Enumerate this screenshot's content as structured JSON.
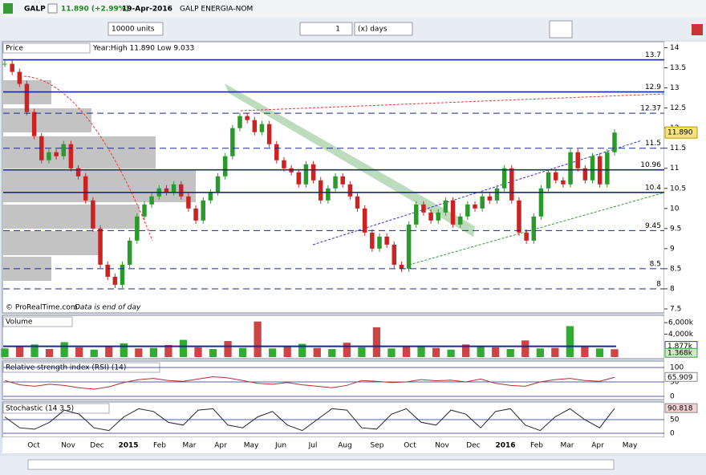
{
  "toolbar": {
    "symbol": "GALP",
    "change": "11.890 (+2.99%)",
    "date": "19-Apr-2016",
    "name": "GALP ENERGIA-NOM",
    "units": "10000 units",
    "period_count": "1",
    "period_unit": "(x) days"
  },
  "price_panel": {
    "title": "Price",
    "info": "Year:High 11.890 Low 9.033",
    "ylim": [
      7.4,
      14.15
    ],
    "yticks": [
      14,
      13.5,
      13,
      12.5,
      12,
      11.5,
      11,
      10.5,
      10,
      9.5,
      9,
      8.5,
      8,
      7.5
    ],
    "levels": [
      {
        "value": 13.7,
        "style": "solid"
      },
      {
        "value": 12.9,
        "style": "solid"
      },
      {
        "value": 12.37,
        "style": "dashed"
      },
      {
        "value": 11.5,
        "style": "dashed"
      },
      {
        "value": 10.96,
        "style": "solid"
      },
      {
        "value": 10.4,
        "style": "solid"
      },
      {
        "value": 9.45,
        "style": "dashed"
      },
      {
        "value": 8.5,
        "style": "dashed"
      },
      {
        "value": 8,
        "style": "dashed"
      }
    ],
    "last_price": {
      "value": 11.89,
      "label": "11.890"
    },
    "copyright": "© ProRealTime.com",
    "note": "Data is end of day",
    "closes": [
      13.6,
      13.4,
      13.1,
      12.4,
      11.8,
      11.2,
      11.4,
      11.3,
      11.6,
      11.0,
      10.8,
      10.2,
      9.5,
      8.6,
      8.3,
      8.1,
      8.6,
      9.2,
      9.8,
      10.1,
      10.3,
      10.5,
      10.4,
      10.6,
      10.3,
      10.0,
      9.7,
      10.2,
      10.4,
      10.8,
      11.3,
      12.0,
      12.3,
      12.2,
      11.9,
      12.1,
      11.6,
      11.2,
      11.0,
      10.9,
      10.6,
      11.1,
      10.7,
      10.2,
      10.5,
      10.8,
      10.6,
      10.3,
      10.0,
      9.4,
      9.0,
      9.3,
      9.1,
      8.6,
      8.5,
      9.6,
      10.1,
      9.9,
      9.7,
      9.9,
      10.2,
      9.6,
      9.8,
      10.1,
      10.0,
      10.3,
      10.2,
      10.5,
      11.0,
      10.2,
      9.4,
      9.2,
      9.8,
      10.5,
      10.9,
      10.7,
      10.6,
      11.4,
      11.0,
      10.7,
      11.3,
      10.6,
      11.4,
      11.89
    ]
  },
  "volume_panel": {
    "title": "Volume",
    "ylim": [
      0,
      7000
    ],
    "yticks": [
      {
        "value": 6000,
        "label": "6,000k"
      },
      {
        "value": 4000,
        "label": "4,000k"
      }
    ],
    "avg_label": {
      "value": 1877,
      "label": "1.877k"
    },
    "last_label": {
      "value": 1368,
      "label": "1.368k"
    },
    "values": [
      1500,
      1800,
      2200,
      1400,
      2600,
      1700,
      1300,
      1900,
      2400,
      1500,
      1600,
      2100,
      3000,
      1700,
      1400,
      2800,
      1600,
      6200,
      1500,
      1800,
      2300,
      1600,
      1400,
      2500,
      1700,
      5200,
      1500,
      1900,
      2000,
      1600,
      1300,
      2200,
      1800,
      1700,
      1400,
      2900,
      1500,
      1600,
      5400,
      1800,
      1500,
      1368
    ]
  },
  "rsi_panel": {
    "title": "Relative strength index (RSI) (14)",
    "ylim": [
      0,
      100
    ],
    "yticks": [
      100,
      50,
      0
    ],
    "last": 65.909,
    "values": [
      55,
      40,
      35,
      42,
      38,
      30,
      25,
      33,
      48,
      58,
      62,
      55,
      52,
      60,
      68,
      64,
      55,
      45,
      42,
      48,
      40,
      35,
      30,
      38,
      55,
      52,
      48,
      50,
      58,
      54,
      56,
      50,
      60,
      45,
      38,
      35,
      50,
      58,
      62,
      55,
      52,
      66
    ]
  },
  "stoch_panel": {
    "title": "Stochastic (14 3 5)",
    "ylim": [
      0,
      100
    ],
    "yticks": [
      50,
      0
    ],
    "last": 90.818,
    "values": [
      60,
      20,
      15,
      40,
      85,
      70,
      20,
      10,
      60,
      90,
      80,
      40,
      30,
      85,
      90,
      30,
      20,
      60,
      80,
      30,
      10,
      50,
      90,
      85,
      20,
      15,
      70,
      90,
      40,
      30,
      85,
      70,
      20,
      80,
      90,
      30,
      10,
      60,
      90,
      50,
      20,
      91
    ]
  },
  "xaxis": {
    "labels": [
      "Oct",
      "Nov",
      "Dec",
      "2015",
      "Feb",
      "Mar",
      "Apr",
      "May",
      "Jun",
      "Jul",
      "Aug",
      "Sep",
      "Oct",
      "Nov",
      "Dec",
      "2016",
      "Feb",
      "Mar",
      "Apr",
      "May"
    ]
  }
}
